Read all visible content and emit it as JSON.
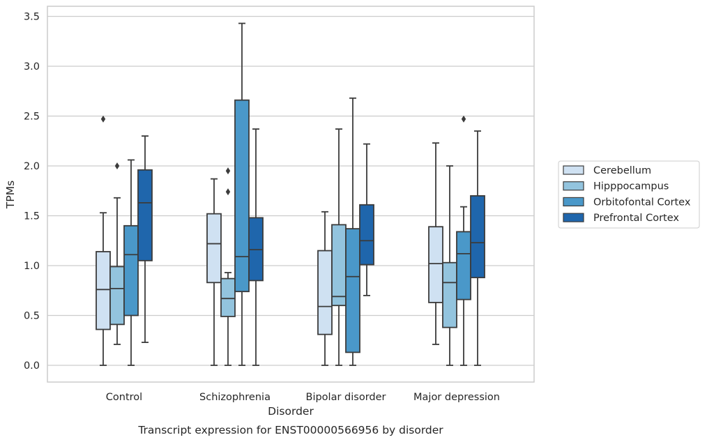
{
  "chart_data": {
    "type": "boxplot",
    "title": "",
    "caption": "Transcript expression for ENST00000566956 by disorder",
    "xlabel": "Disorder",
    "ylabel": "TPMs",
    "ylim": [
      -0.17,
      3.6
    ],
    "yticks": [
      0.0,
      0.5,
      1.0,
      1.5,
      2.0,
      2.5,
      3.0,
      3.5
    ],
    "ytick_labels": [
      "0.0",
      "0.5",
      "1.0",
      "1.5",
      "2.0",
      "2.5",
      "3.0",
      "3.5"
    ],
    "grid": "horizontal",
    "legend_position": "right",
    "categories": [
      "Control",
      "Schizophrenia",
      "Bipolar disorder",
      "Major depression"
    ],
    "series": [
      {
        "name": "Cerebellum",
        "color": "#cfe1f2",
        "boxes": [
          {
            "whislo": 0.0,
            "q1": 0.36,
            "med": 0.76,
            "q3": 1.14,
            "whishi": 1.53,
            "fliers": [
              2.47
            ]
          },
          {
            "whislo": 0.0,
            "q1": 0.83,
            "med": 1.22,
            "q3": 1.52,
            "whishi": 1.87,
            "fliers": []
          },
          {
            "whislo": 0.0,
            "q1": 0.31,
            "med": 0.59,
            "q3": 1.15,
            "whishi": 1.54,
            "fliers": []
          },
          {
            "whislo": 0.21,
            "q1": 0.63,
            "med": 1.02,
            "q3": 1.39,
            "whishi": 2.23,
            "fliers": []
          }
        ]
      },
      {
        "name": "Hipppocampus",
        "color": "#93c4de",
        "boxes": [
          {
            "whislo": 0.21,
            "q1": 0.41,
            "med": 0.77,
            "q3": 0.99,
            "whishi": 1.68,
            "fliers": [
              2.0
            ]
          },
          {
            "whislo": 0.0,
            "q1": 0.49,
            "med": 0.67,
            "q3": 0.87,
            "whishi": 0.93,
            "fliers": [
              1.74,
              1.95
            ]
          },
          {
            "whislo": 0.0,
            "q1": 0.6,
            "med": 0.69,
            "q3": 1.41,
            "whishi": 2.37,
            "fliers": []
          },
          {
            "whislo": 0.0,
            "q1": 0.38,
            "med": 0.83,
            "q3": 1.03,
            "whishi": 2.0,
            "fliers": []
          }
        ]
      },
      {
        "name": "Orbitofontal Cortex",
        "color": "#4a98c9",
        "boxes": [
          {
            "whislo": 0.0,
            "q1": 0.5,
            "med": 1.11,
            "q3": 1.4,
            "whishi": 2.06,
            "fliers": []
          },
          {
            "whislo": 0.0,
            "q1": 0.74,
            "med": 1.09,
            "q3": 2.66,
            "whishi": 3.43,
            "fliers": []
          },
          {
            "whislo": 0.0,
            "q1": 0.13,
            "med": 0.89,
            "q3": 1.37,
            "whishi": 2.68,
            "fliers": []
          },
          {
            "whislo": 0.0,
            "q1": 0.66,
            "med": 1.12,
            "q3": 1.34,
            "whishi": 1.59,
            "fliers": [
              2.47
            ]
          }
        ]
      },
      {
        "name": "Prefrontal Cortex",
        "color": "#1f66ac",
        "boxes": [
          {
            "whislo": 0.23,
            "q1": 1.05,
            "med": 1.63,
            "q3": 1.96,
            "whishi": 2.3,
            "fliers": []
          },
          {
            "whislo": 0.0,
            "q1": 0.85,
            "med": 1.16,
            "q3": 1.48,
            "whishi": 2.37,
            "fliers": []
          },
          {
            "whislo": 0.7,
            "q1": 1.01,
            "med": 1.25,
            "q3": 1.61,
            "whishi": 2.22,
            "fliers": []
          },
          {
            "whislo": 0.0,
            "q1": 0.88,
            "med": 1.23,
            "q3": 1.7,
            "whishi": 2.35,
            "fliers": []
          }
        ]
      }
    ]
  }
}
